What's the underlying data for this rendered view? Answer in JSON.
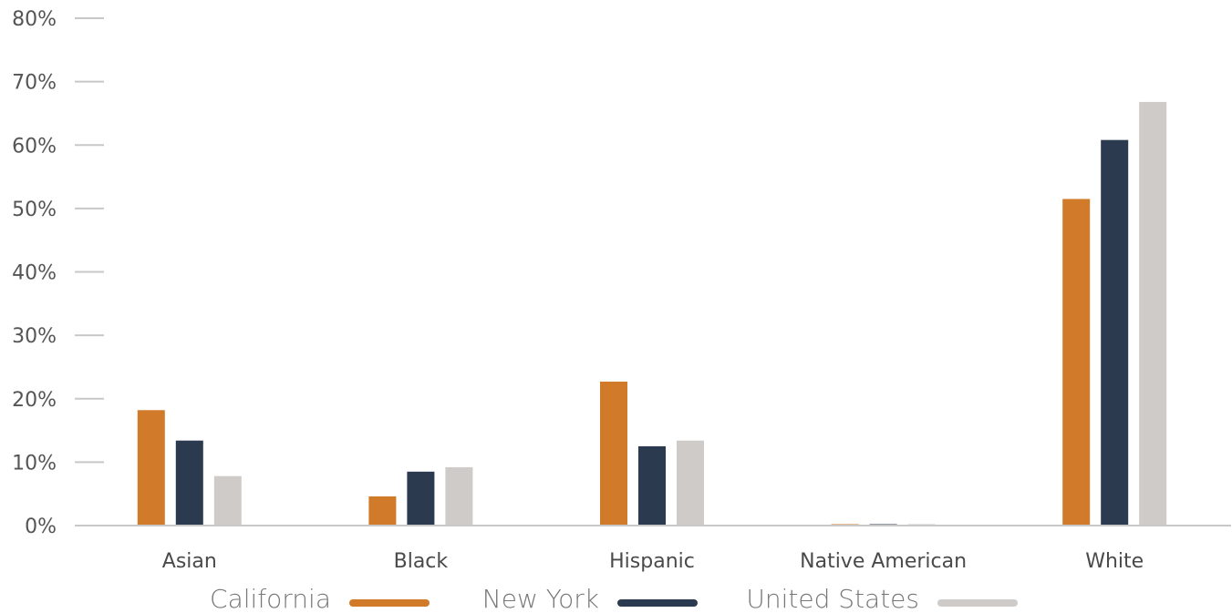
{
  "chart_data": {
    "type": "bar",
    "categories": [
      "Asian",
      "Black",
      "Hispanic",
      "Native American",
      "White"
    ],
    "series": [
      {
        "name": "California",
        "color": "#d17a2a",
        "values": [
          18.2,
          4.6,
          22.7,
          0.2,
          51.5
        ]
      },
      {
        "name": "New York",
        "color": "#2b3a4f",
        "values": [
          13.4,
          8.5,
          12.5,
          0.15,
          60.8
        ]
      },
      {
        "name": "United States",
        "color": "#cfcbc8",
        "values": [
          7.8,
          9.2,
          13.4,
          0.1,
          66.8
        ]
      }
    ],
    "ylim": [
      0,
      80
    ],
    "yticks": [
      "0%",
      "10%",
      "20%",
      "30%",
      "40%",
      "50%",
      "60%",
      "70%",
      "80%"
    ],
    "ytick_values": [
      0,
      10,
      20,
      30,
      40,
      50,
      60,
      70,
      80
    ],
    "legend": "bottom",
    "grid": false
  }
}
